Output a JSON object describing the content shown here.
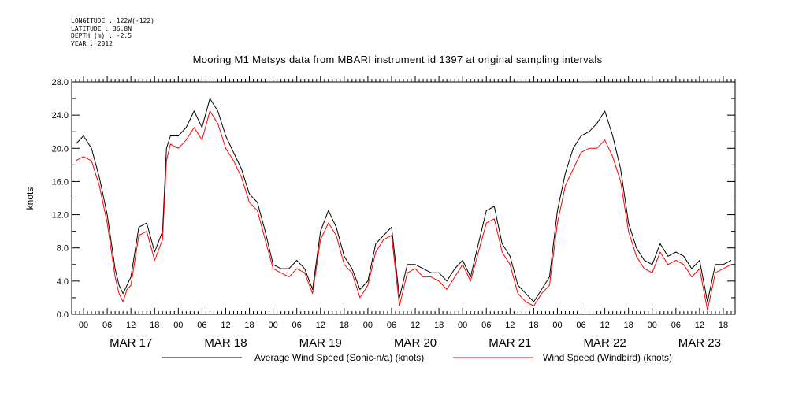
{
  "header": {
    "longitude": "LONGITUDE : 122W(-122)",
    "latitude": "LATITUDE : 36.8N",
    "depth": "DEPTH (m) : -2.5",
    "year": "YEAR : 2012"
  },
  "chart_data": {
    "type": "line",
    "title": "Mooring M1 Metsys data from MBARI instrument id 1397 at original sampling intervals",
    "ylabel": "knots",
    "ylim": [
      0,
      28
    ],
    "ytick_labels": [
      "0.0",
      "4.0",
      "8.0",
      "12.0",
      "16.0",
      "20.0",
      "24.0",
      "28.0"
    ],
    "yticks": [
      0,
      4,
      8,
      12,
      16,
      20,
      24,
      28
    ],
    "xlim_hours": [
      -3,
      165
    ],
    "hour_tick_labels": [
      "00",
      "06",
      "12",
      "18"
    ],
    "day_labels": [
      "MAR 17",
      "MAR 18",
      "MAR 19",
      "MAR 20",
      "MAR 21",
      "MAR 22",
      "MAR 23"
    ],
    "x_unit": "hours since MAR 17 00:00",
    "series": [
      {
        "name": "Average Wind Speed (Sonic-n/a) (knots)",
        "color": "#000000",
        "x": [
          -2,
          0,
          2,
          4,
          6,
          8,
          9,
          10,
          11,
          12,
          14,
          16,
          18,
          20,
          21,
          22,
          24,
          26,
          28,
          30,
          32,
          34,
          36,
          38,
          40,
          42,
          44,
          46,
          48,
          50,
          52,
          54,
          56,
          58,
          60,
          62,
          64,
          66,
          68,
          70,
          72,
          74,
          76,
          78,
          80,
          82,
          84,
          86,
          88,
          90,
          92,
          94,
          96,
          98,
          100,
          102,
          104,
          106,
          108,
          110,
          112,
          114,
          116,
          118,
          120,
          122,
          124,
          126,
          128,
          130,
          132,
          134,
          136,
          138,
          140,
          142,
          144,
          146,
          148,
          150,
          152,
          154,
          156,
          158,
          160,
          162,
          164
        ],
        "y": [
          20.5,
          21.5,
          20.0,
          16.5,
          12.0,
          5.5,
          3.5,
          2.5,
          3.5,
          4.5,
          10.5,
          11.0,
          7.5,
          10.0,
          20.0,
          21.5,
          21.5,
          22.5,
          24.5,
          22.5,
          26.0,
          24.5,
          21.5,
          19.5,
          17.5,
          14.5,
          13.5,
          10.0,
          6.0,
          5.5,
          5.5,
          6.5,
          5.5,
          3.0,
          10.0,
          12.5,
          10.5,
          7.0,
          5.5,
          3.0,
          4.0,
          8.5,
          9.5,
          10.5,
          2.0,
          6.0,
          6.0,
          5.5,
          5.0,
          5.0,
          4.0,
          5.5,
          6.5,
          4.5,
          8.5,
          12.5,
          13.0,
          8.5,
          7.0,
          3.5,
          2.5,
          1.5,
          3.0,
          4.5,
          12.5,
          17.0,
          20.0,
          21.5,
          22.0,
          23.0,
          24.5,
          21.5,
          17.5,
          11.0,
          8.0,
          6.5,
          6.0,
          8.5,
          7.0,
          7.5,
          7.0,
          5.5,
          6.5,
          1.5,
          6.0,
          6.0,
          6.5
        ]
      },
      {
        "name": "Wind Speed (Windbird) (knots)",
        "color": "#ff0000",
        "x": [
          -2,
          0,
          2,
          4,
          6,
          8,
          9,
          10,
          11,
          12,
          14,
          16,
          18,
          20,
          21,
          22,
          24,
          26,
          28,
          30,
          32,
          34,
          36,
          38,
          40,
          42,
          44,
          46,
          48,
          50,
          52,
          54,
          56,
          58,
          60,
          62,
          64,
          66,
          68,
          70,
          72,
          74,
          76,
          78,
          80,
          82,
          84,
          86,
          88,
          90,
          92,
          94,
          96,
          98,
          100,
          102,
          104,
          106,
          108,
          110,
          112,
          114,
          116,
          118,
          120,
          122,
          124,
          126,
          128,
          130,
          132,
          134,
          136,
          138,
          140,
          142,
          144,
          146,
          148,
          150,
          152,
          154,
          156,
          158,
          160,
          162,
          164
        ],
        "y": [
          18.5,
          19.0,
          18.5,
          15.5,
          11.0,
          4.5,
          2.5,
          1.5,
          3.0,
          3.5,
          9.5,
          10.0,
          6.5,
          9.0,
          18.5,
          20.5,
          20.0,
          21.0,
          22.5,
          21.0,
          24.5,
          23.0,
          20.0,
          18.5,
          16.5,
          13.5,
          12.5,
          9.0,
          5.5,
          5.0,
          4.5,
          5.5,
          5.0,
          2.5,
          9.0,
          11.0,
          9.5,
          6.0,
          5.0,
          2.0,
          3.5,
          7.5,
          9.0,
          9.5,
          1.0,
          5.0,
          5.5,
          4.5,
          4.5,
          4.0,
          3.0,
          4.5,
          6.0,
          4.0,
          7.5,
          11.0,
          11.5,
          7.5,
          6.0,
          2.5,
          1.5,
          1.0,
          2.5,
          3.5,
          11.0,
          15.5,
          17.5,
          19.5,
          20.0,
          20.0,
          21.0,
          19.0,
          16.0,
          10.0,
          7.0,
          5.5,
          5.0,
          7.5,
          6.0,
          6.5,
          6.0,
          4.5,
          5.5,
          0.5,
          5.0,
          5.5,
          6.0
        ]
      }
    ]
  }
}
